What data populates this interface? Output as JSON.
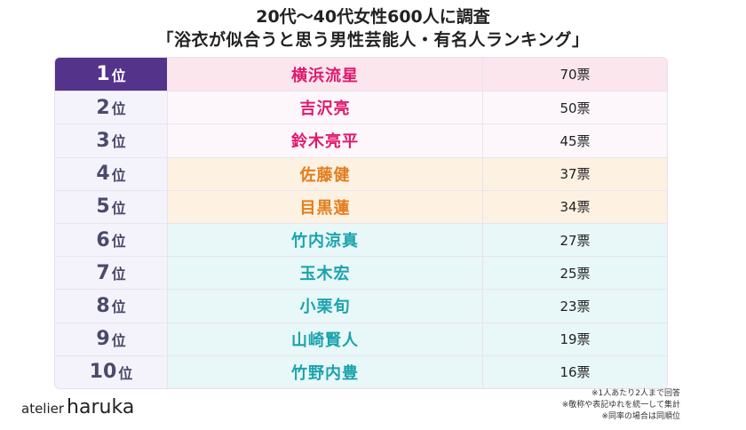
{
  "title": "20代〜40代女性600人に調査",
  "subtitle": "「浴衣が似合うと思う男性芸能人・有名人ランキング」",
  "rank_suffix": "位",
  "colors": {
    "rank1_bg": "#54338a",
    "rank1_text": "#ffffff",
    "pink_bg": "#fbe6ee",
    "light_pink_bg": "#fdf7fb",
    "lavender_rank_bg": "#f4f2fb",
    "orange_bg": "#fdf1e2",
    "teal_bg": "#e8f7f7",
    "name_pink": "#e0196e",
    "name_orange": "#e27d1c",
    "name_teal": "#1aa3ad"
  },
  "chart_data": {
    "type": "table",
    "title": "20代〜40代女性600人に調査",
    "subtitle": "「浴衣が似合うと思う男性芸能人・有名人ランキング」",
    "rows": [
      {
        "rank": "1",
        "name": "横浜流星",
        "votes": "70票",
        "value": 70,
        "group": "pink"
      },
      {
        "rank": "2",
        "name": "吉沢亮",
        "votes": "50票",
        "value": 50,
        "group": "pink"
      },
      {
        "rank": "3",
        "name": "鈴木亮平",
        "votes": "45票",
        "value": 45,
        "group": "pink"
      },
      {
        "rank": "4",
        "name": "佐藤健",
        "votes": "37票",
        "value": 37,
        "group": "orange"
      },
      {
        "rank": "5",
        "name": "目黒蓮",
        "votes": "34票",
        "value": 34,
        "group": "orange"
      },
      {
        "rank": "6",
        "name": "竹内涼真",
        "votes": "27票",
        "value": 27,
        "group": "teal"
      },
      {
        "rank": "7",
        "name": "玉木宏",
        "votes": "25票",
        "value": 25,
        "group": "teal"
      },
      {
        "rank": "8",
        "name": "小栗旬",
        "votes": "23票",
        "value": 23,
        "group": "teal"
      },
      {
        "rank": "9",
        "name": "山崎賢人",
        "votes": "19票",
        "value": 19,
        "group": "teal"
      },
      {
        "rank": "10",
        "name": "竹野内豊",
        "votes": "16票",
        "value": 16,
        "group": "teal"
      }
    ]
  },
  "notes": [
    "※1人あたり2人まで回答",
    "※敬称や表記ゆれを統一して集計",
    "※同率の場合は同順位"
  ],
  "logo": {
    "part1": "atelier",
    "part2": "haruka"
  }
}
